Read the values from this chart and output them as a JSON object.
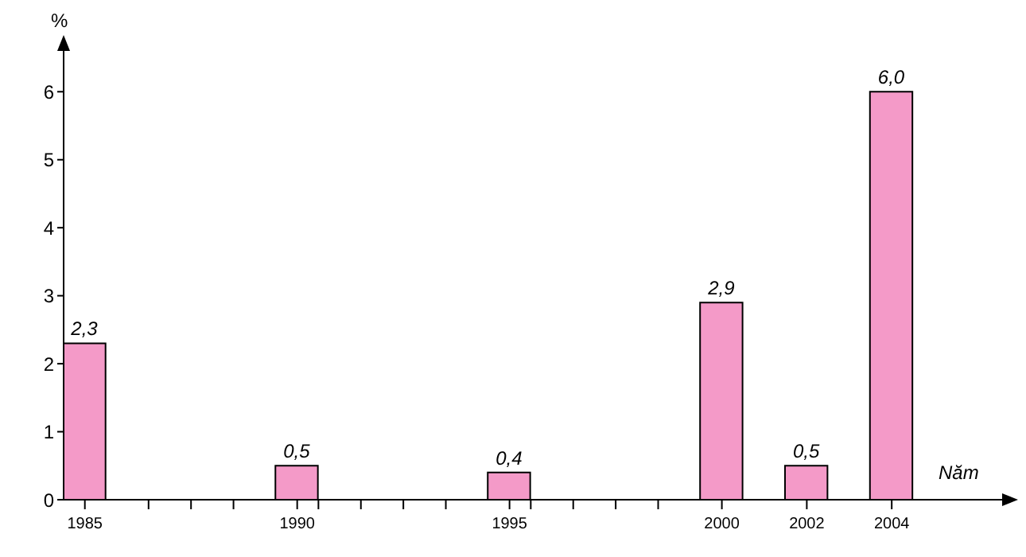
{
  "chart_data": {
    "type": "bar",
    "xlabel": "Năm",
    "ylabel": "%",
    "x": [
      1985,
      1990,
      1995,
      2000,
      2002,
      2004
    ],
    "values": [
      2.3,
      0.5,
      0.4,
      2.9,
      0.5,
      6.0
    ],
    "value_labels": [
      "2,3",
      "0,5",
      "0,4",
      "2,9",
      "0,5",
      "6,0"
    ],
    "color": "#f49ac8",
    "xlim": [
      1984.5,
      2006.6
    ],
    "xticks": [
      1985,
      {
        "value": 1986.5,
        "label": null
      },
      {
        "value": 1987.5,
        "label": null
      },
      {
        "value": 1988.5,
        "label": null
      },
      1990,
      {
        "value": 1990.5,
        "label": null
      },
      {
        "value": 1991.5,
        "label": null
      },
      {
        "value": 1992.5,
        "label": null
      },
      {
        "value": 1993.5,
        "label": null
      },
      1995,
      {
        "value": 1995.5,
        "label": null
      },
      {
        "value": 1996.5,
        "label": null
      },
      {
        "value": 1997.5,
        "label": null
      },
      {
        "value": 1998.5,
        "label": null
      },
      2000,
      2002,
      2004
    ],
    "ylim": [
      0,
      6.6
    ],
    "yticks": [
      0,
      1,
      2,
      3,
      4,
      5,
      6
    ],
    "grid": false
  }
}
